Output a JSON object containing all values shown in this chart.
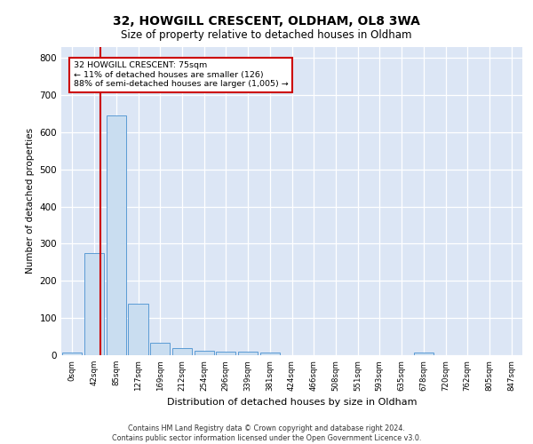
{
  "title": "32, HOWGILL CRESCENT, OLDHAM, OL8 3WA",
  "subtitle": "Size of property relative to detached houses in Oldham",
  "xlabel": "Distribution of detached houses by size in Oldham",
  "ylabel": "Number of detached properties",
  "bin_labels": [
    "0sqm",
    "42sqm",
    "85sqm",
    "127sqm",
    "169sqm",
    "212sqm",
    "254sqm",
    "296sqm",
    "339sqm",
    "381sqm",
    "424sqm",
    "466sqm",
    "508sqm",
    "551sqm",
    "593sqm",
    "635sqm",
    "678sqm",
    "720sqm",
    "762sqm",
    "805sqm",
    "847sqm"
  ],
  "bar_values": [
    8,
    275,
    645,
    138,
    33,
    18,
    12,
    10,
    10,
    8,
    0,
    0,
    0,
    0,
    0,
    0,
    6,
    0,
    0,
    0,
    0
  ],
  "bar_color": "#c9ddf0",
  "bar_edge_color": "#5b9bd5",
  "annotation_text": "32 HOWGILL CRESCENT: 75sqm\n← 11% of detached houses are smaller (126)\n88% of semi-detached houses are larger (1,005) →",
  "vline_color": "#cc0000",
  "annotation_box_color": "#cc0000",
  "background_color": "#dce6f5",
  "footer_text": "Contains HM Land Registry data © Crown copyright and database right 2024.\nContains public sector information licensed under the Open Government Licence v3.0.",
  "ylim": [
    0,
    830
  ],
  "yticks": [
    0,
    100,
    200,
    300,
    400,
    500,
    600,
    700,
    800
  ]
}
